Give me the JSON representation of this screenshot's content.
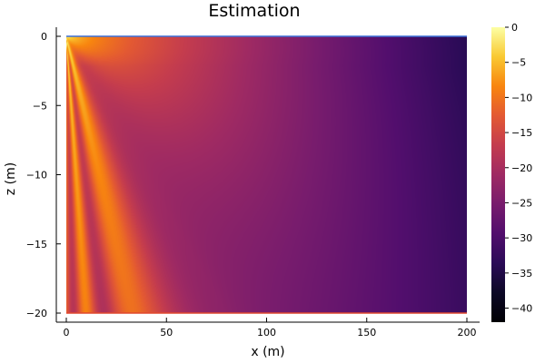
{
  "chart_data": {
    "type": "heatmap",
    "title": "Estimation",
    "xlabel": "x (m)",
    "ylabel": "z (m)",
    "xlim": [
      0,
      200
    ],
    "ylim": [
      -20,
      0
    ],
    "x_ticks": [
      0,
      50,
      100,
      150,
      200
    ],
    "y_ticks": [
      0,
      -5,
      -10,
      -15,
      -20
    ],
    "colorbar": {
      "range": [
        -42,
        0
      ],
      "ticks": [
        0,
        -5,
        -10,
        -15,
        -20,
        -25,
        -30,
        -35,
        -40
      ],
      "colormap": "inferno"
    },
    "grid": false,
    "legend": "none",
    "boundary_lines": [
      {
        "z": 0,
        "color": "#3b6fd6"
      },
      {
        "z": -20,
        "color": "#e0482f"
      }
    ]
  }
}
